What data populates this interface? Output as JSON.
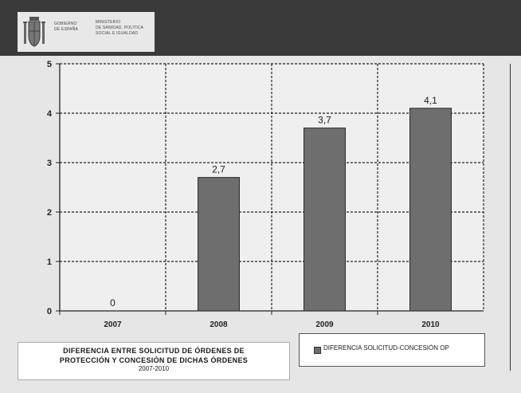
{
  "header": {
    "gov_lines": [
      "GOBIERNO",
      "DE ESPAÑA"
    ],
    "ministry_lines": [
      "MINISTERIO",
      "DE SANIDAD, POLÍTICA",
      "SOCIAL E IGUALDAD"
    ]
  },
  "colors": {
    "bar": "#6e6e6e",
    "header": "#3a3a3a",
    "background": "#e6e6e6"
  },
  "chart_data": {
    "type": "bar",
    "categories": [
      "2007",
      "2008",
      "2009",
      "2010"
    ],
    "values": [
      0,
      2.7,
      3.7,
      4.1
    ],
    "data_labels": [
      "0",
      "2,7",
      "3,7",
      "4,1"
    ],
    "yticks": [
      "0",
      "1",
      "2",
      "3",
      "4",
      "5"
    ],
    "ylim": [
      0,
      5
    ],
    "grid": true,
    "series": [
      {
        "name": "DIFERENCIA SOLICITUD-CONCESIÓN OP",
        "values": [
          0,
          2.7,
          3.7,
          4.1
        ]
      }
    ],
    "legend": "bottom-right"
  },
  "caption": {
    "line1": "DIFERENCIA ENTRE SOLICITUD DE ÓRDENES DE",
    "line2": "PROTECCIÓN Y CONCESIÓN DE DICHAS ÓRDENES",
    "line3": "2007-2010"
  }
}
